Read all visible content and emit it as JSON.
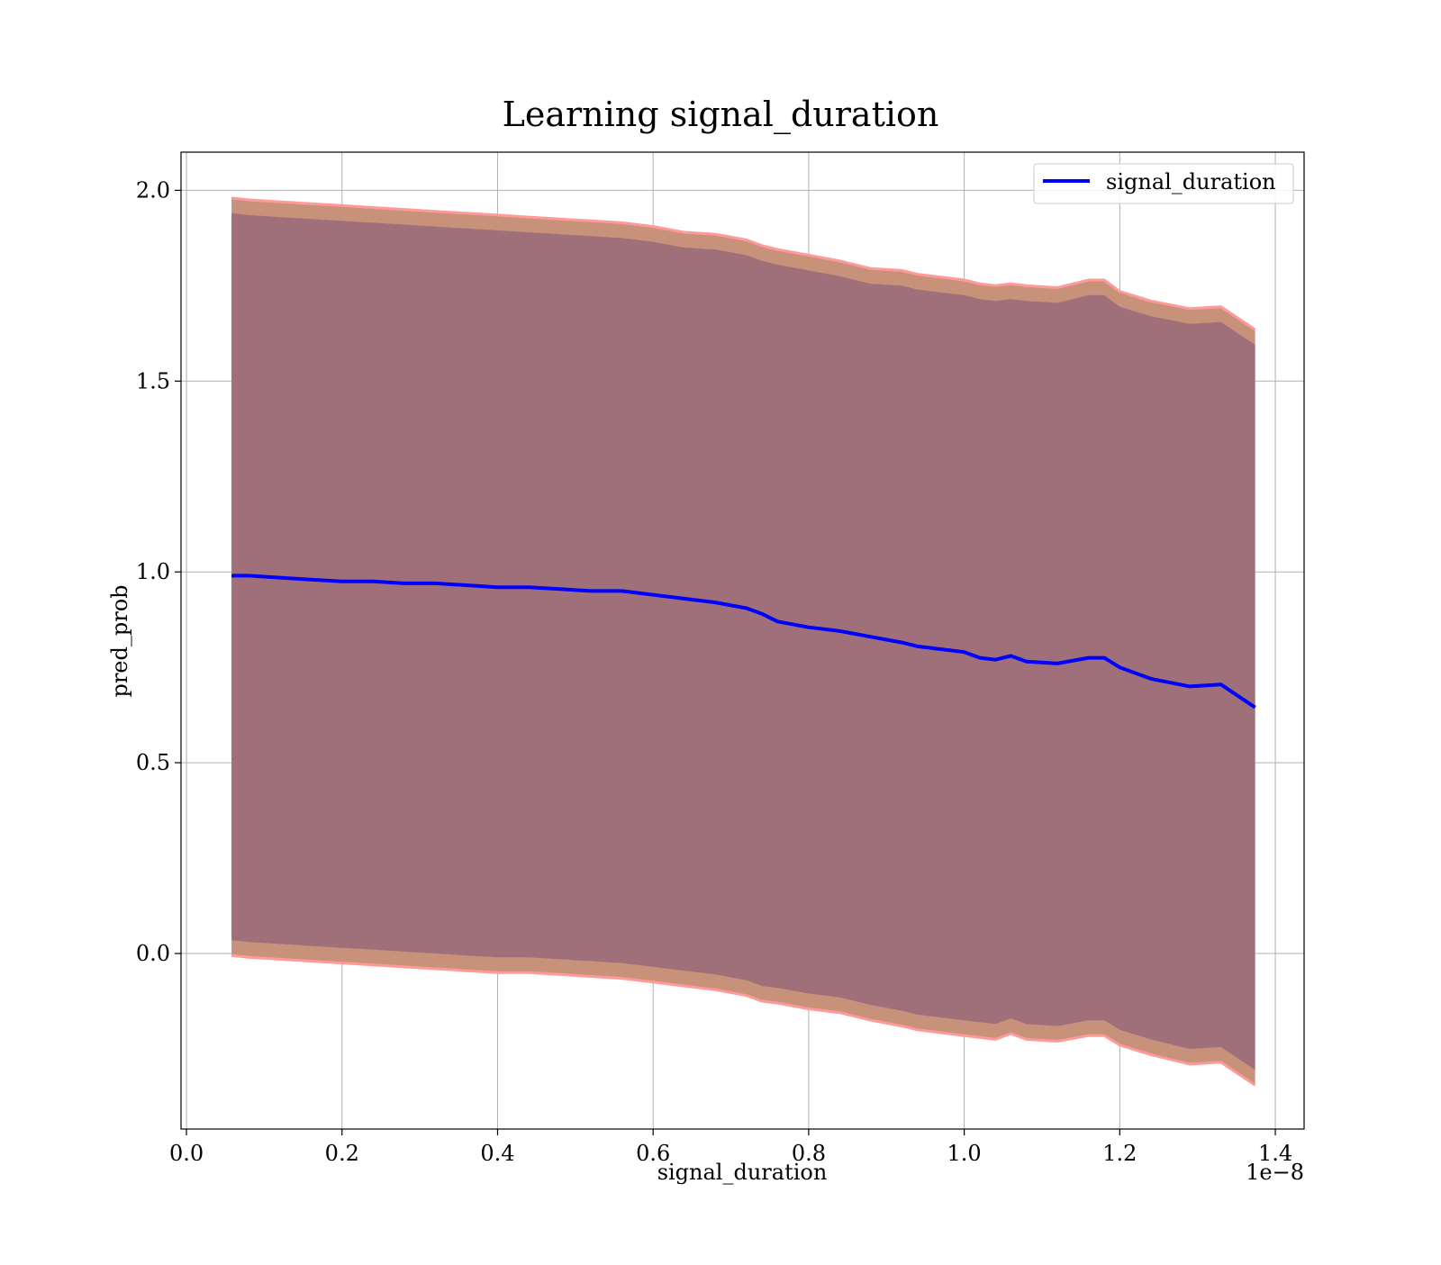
{
  "chart_data": {
    "type": "line",
    "title": "Learning signal_duration",
    "xlabel": "signal_duration",
    "ylabel": "pred_prob",
    "x_offset_label": "1e−8",
    "xlim": [
      -0.007,
      1.437
    ],
    "ylim": [
      -0.46,
      2.1
    ],
    "grid": true,
    "legend_position": "top-right",
    "x_ticks": [
      0.0,
      0.2,
      0.4,
      0.6,
      0.8,
      1.0,
      1.2,
      1.4
    ],
    "x_tick_labels": [
      "0.0",
      "0.2",
      "0.4",
      "0.6",
      "0.8",
      "1.0",
      "1.2",
      "1.4"
    ],
    "y_ticks": [
      0.0,
      0.5,
      1.0,
      1.5,
      2.0
    ],
    "y_tick_labels": [
      "0.0",
      "0.5",
      "1.0",
      "1.5",
      "2.0"
    ],
    "colors": {
      "line": "#0000ff",
      "outer_band": "#c8917a",
      "outer_band_edge": "#ff9a9a",
      "inner_band": "#a0707a",
      "grid": "#b0b0b0"
    },
    "x": [
      0.058,
      0.08,
      0.12,
      0.16,
      0.2,
      0.24,
      0.28,
      0.32,
      0.36,
      0.4,
      0.44,
      0.48,
      0.52,
      0.56,
      0.6,
      0.64,
      0.68,
      0.72,
      0.74,
      0.76,
      0.8,
      0.84,
      0.88,
      0.92,
      0.94,
      0.96,
      1.0,
      1.02,
      1.04,
      1.06,
      1.08,
      1.12,
      1.16,
      1.18,
      1.2,
      1.24,
      1.29,
      1.33,
      1.374
    ],
    "series": [
      {
        "name": "signal_duration",
        "values": [
          0.99,
          0.99,
          0.985,
          0.98,
          0.975,
          0.975,
          0.97,
          0.97,
          0.965,
          0.96,
          0.96,
          0.955,
          0.95,
          0.95,
          0.94,
          0.93,
          0.92,
          0.905,
          0.89,
          0.87,
          0.855,
          0.845,
          0.83,
          0.815,
          0.805,
          0.8,
          0.79,
          0.775,
          0.77,
          0.78,
          0.765,
          0.76,
          0.775,
          0.775,
          0.75,
          0.72,
          0.7,
          0.705,
          0.645
        ]
      }
    ],
    "outer_band": {
      "upper": [
        1.98,
        1.975,
        1.97,
        1.965,
        1.96,
        1.955,
        1.95,
        1.945,
        1.94,
        1.935,
        1.93,
        1.925,
        1.92,
        1.915,
        1.905,
        1.89,
        1.885,
        1.87,
        1.855,
        1.845,
        1.83,
        1.815,
        1.795,
        1.79,
        1.78,
        1.775,
        1.765,
        1.755,
        1.75,
        1.755,
        1.75,
        1.745,
        1.765,
        1.765,
        1.735,
        1.71,
        1.69,
        1.695,
        1.635
      ],
      "lower": [
        -0.005,
        -0.01,
        -0.015,
        -0.02,
        -0.025,
        -0.03,
        -0.035,
        -0.04,
        -0.045,
        -0.05,
        -0.05,
        -0.055,
        -0.06,
        -0.065,
        -0.075,
        -0.085,
        -0.095,
        -0.11,
        -0.125,
        -0.13,
        -0.145,
        -0.155,
        -0.175,
        -0.19,
        -0.2,
        -0.205,
        -0.215,
        -0.22,
        -0.225,
        -0.21,
        -0.225,
        -0.23,
        -0.215,
        -0.215,
        -0.24,
        -0.265,
        -0.29,
        -0.285,
        -0.345
      ]
    },
    "inner_band": {
      "upper": [
        1.94,
        1.935,
        1.93,
        1.925,
        1.92,
        1.915,
        1.91,
        1.905,
        1.9,
        1.895,
        1.89,
        1.885,
        1.88,
        1.875,
        1.865,
        1.85,
        1.845,
        1.83,
        1.815,
        1.805,
        1.79,
        1.775,
        1.755,
        1.75,
        1.74,
        1.735,
        1.725,
        1.715,
        1.71,
        1.715,
        1.71,
        1.705,
        1.725,
        1.725,
        1.695,
        1.67,
        1.65,
        1.655,
        1.595
      ],
      "lower": [
        0.035,
        0.03,
        0.025,
        0.02,
        0.015,
        0.01,
        0.005,
        0.0,
        -0.005,
        -0.01,
        -0.01,
        -0.015,
        -0.02,
        -0.025,
        -0.035,
        -0.045,
        -0.055,
        -0.07,
        -0.085,
        -0.09,
        -0.105,
        -0.115,
        -0.135,
        -0.15,
        -0.16,
        -0.165,
        -0.175,
        -0.18,
        -0.185,
        -0.17,
        -0.185,
        -0.19,
        -0.175,
        -0.175,
        -0.2,
        -0.225,
        -0.25,
        -0.245,
        -0.305
      ]
    }
  }
}
